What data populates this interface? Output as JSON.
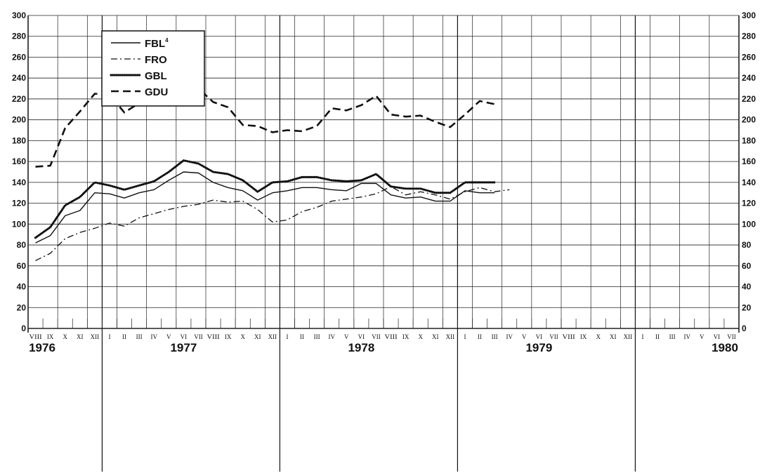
{
  "chart_data": {
    "type": "line",
    "ylim": [
      0,
      300
    ],
    "yticks": [
      0,
      20,
      40,
      60,
      80,
      100,
      120,
      140,
      160,
      180,
      200,
      220,
      240,
      260,
      280,
      300
    ],
    "grid": true,
    "legend_position": "top-left",
    "month_labels": [
      "VIII",
      "IX",
      "X",
      "XI",
      "XII",
      "I",
      "II",
      "III",
      "IV",
      "V",
      "VI",
      "VII",
      "VIII",
      "IX",
      "X",
      "XI",
      "XII",
      "I",
      "II",
      "III",
      "IV",
      "V",
      "VI",
      "VII",
      "VIII",
      "IX",
      "X",
      "XI",
      "XII",
      "I",
      "II",
      "III",
      "IV",
      "V",
      "VI",
      "VII",
      "VIII",
      "IX",
      "X",
      "XI",
      "XII",
      "I",
      "II",
      "III",
      "IV",
      "V",
      "VI",
      "VII"
    ],
    "years": [
      {
        "label": "1976",
        "index": 0
      },
      {
        "label": "1977",
        "index": 10
      },
      {
        "label": "1978",
        "index": 22
      },
      {
        "label": "1979",
        "index": 34
      },
      {
        "label": "1980",
        "index": 46
      }
    ],
    "series": [
      {
        "name": "FBL",
        "sup": "4",
        "style": "solid",
        "values": [
          82,
          89,
          108,
          113,
          130,
          129,
          125,
          130,
          133,
          142,
          150,
          149,
          140,
          135,
          132,
          123,
          130,
          132,
          135,
          135,
          133,
          132,
          139,
          139,
          128,
          125,
          126,
          122,
          122,
          132,
          130,
          130
        ]
      },
      {
        "name": "FRO",
        "sup": "",
        "style": "dashdot",
        "values": [
          65,
          72,
          86,
          92,
          96,
          101,
          98,
          106,
          110,
          114,
          117,
          119,
          123,
          121,
          122,
          114,
          102,
          104,
          112,
          116,
          122,
          124,
          126,
          129,
          136,
          128,
          131,
          128,
          124,
          131,
          135,
          131,
          133
        ]
      },
      {
        "name": "GBL",
        "sup": "",
        "style": "dotted",
        "values": [
          87,
          97,
          118,
          126,
          140,
          137,
          133,
          137,
          141,
          150,
          161,
          158,
          150,
          148,
          142,
          131,
          140,
          141,
          145,
          145,
          142,
          141,
          142,
          148,
          136,
          134,
          134,
          130,
          130,
          140,
          140,
          140
        ]
      },
      {
        "name": "GDU",
        "sup": "",
        "style": "dashed",
        "values": [
          155,
          156,
          192,
          208,
          225,
          224,
          207,
          216,
          231,
          230,
          232,
          230,
          217,
          212,
          195,
          194,
          188,
          190,
          189,
          194,
          211,
          209,
          214,
          223,
          205,
          203,
          204,
          198,
          193,
          205,
          218,
          215
        ]
      }
    ]
  }
}
